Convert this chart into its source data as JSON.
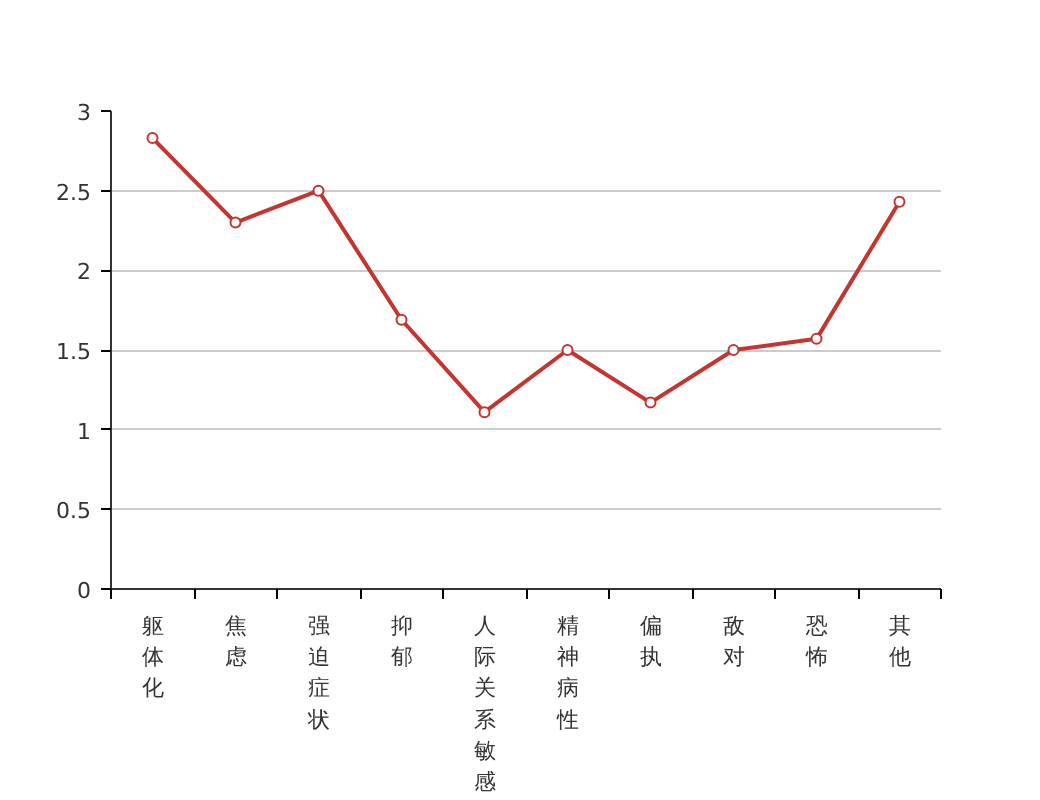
{
  "chart_data": {
    "type": "line",
    "categories": [
      "躯体化",
      "焦虑",
      "强迫症状",
      "抑郁",
      "人际关系敏感",
      "精神病性",
      "偏执",
      "敌对",
      "恐怖",
      "其他"
    ],
    "series": [
      {
        "color": "#c23531",
        "values": [
          2.83,
          2.3,
          2.5,
          1.69,
          1.11,
          1.5,
          1.17,
          1.5,
          1.57,
          2.43
        ]
      }
    ],
    "ylim": [
      0,
      3
    ],
    "yticks": [
      0,
      0.5,
      1,
      1.5,
      2,
      2.5,
      3
    ],
    "grid": "y",
    "marker": "circle",
    "line_style": "solid"
  }
}
